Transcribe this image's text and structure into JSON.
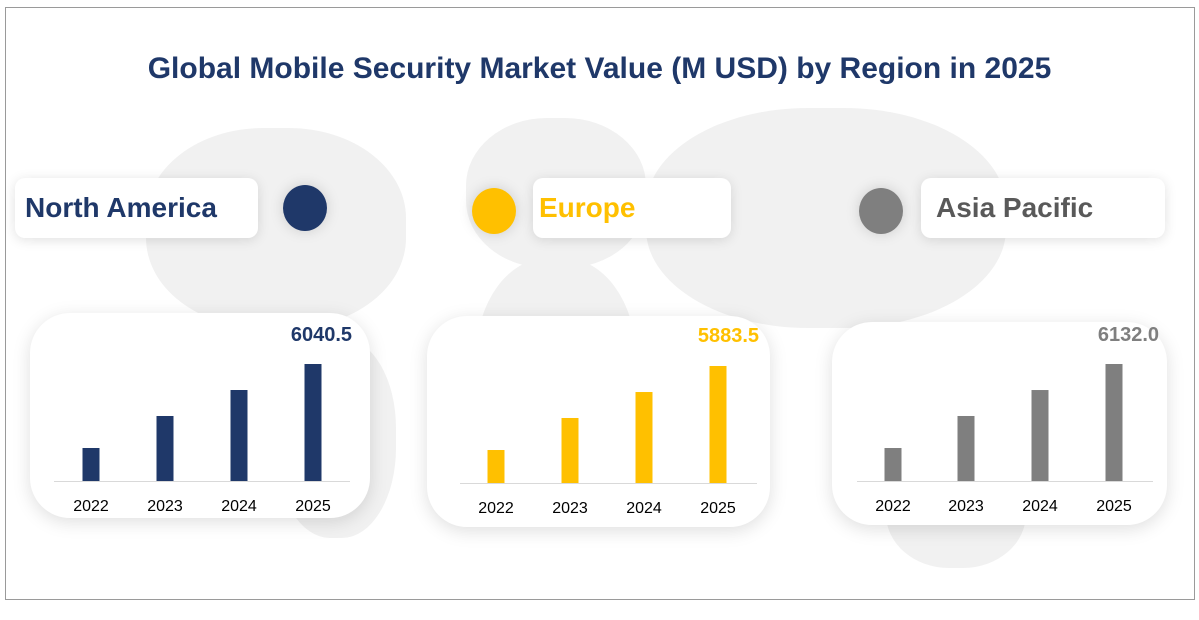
{
  "title": "Global Mobile Security Market Value (M USD) by Region in 2025",
  "chart_data": [
    {
      "type": "bar",
      "region": "North America",
      "color": "#1f3869",
      "categories": [
        "2022",
        "2023",
        "2024",
        "2025"
      ],
      "values": [
        1704,
        3356,
        4698,
        6040.5
      ],
      "value_label": "6040.5"
    },
    {
      "type": "bar",
      "region": "Europe",
      "color": "#ffc000",
      "categories": [
        "2022",
        "2023",
        "2024",
        "2025"
      ],
      "values": [
        1659,
        3269,
        4575,
        5883.5
      ],
      "value_label": "5883.5"
    },
    {
      "type": "bar",
      "region": "Asia Pacific",
      "color": "#7f7f7f",
      "categories": [
        "2022",
        "2023",
        "2024",
        "2025"
      ],
      "values": [
        1729,
        3407,
        4768,
        6132.0
      ],
      "value_label": "6132.0"
    }
  ]
}
